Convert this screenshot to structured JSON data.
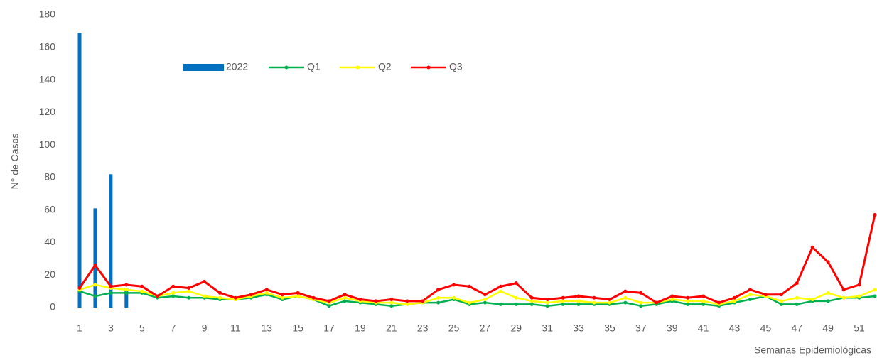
{
  "chart_data": {
    "type": "bar-line",
    "y_label": "N° de Casos",
    "x_label": "Semanas Epidemiológicas",
    "categories": [
      1,
      null,
      3,
      null,
      5,
      null,
      7,
      null,
      9,
      null,
      11,
      null,
      13,
      null,
      15,
      null,
      17,
      null,
      19,
      null,
      21,
      null,
      23,
      null,
      25,
      null,
      27,
      null,
      29,
      null,
      31,
      null,
      33,
      null,
      35,
      null,
      37,
      null,
      39,
      null,
      41,
      null,
      43,
      null,
      45,
      null,
      47,
      null,
      49,
      null,
      51,
      null
    ],
    "ylim": [
      0,
      180
    ],
    "yticks": [
      0,
      20,
      40,
      60,
      80,
      100,
      120,
      140,
      160,
      180
    ],
    "grid": false,
    "legend": "top-left",
    "series": [
      {
        "name": "2022",
        "kind": "bar",
        "color": "#0070c0",
        "values": [
          169,
          61,
          82,
          12,
          null,
          null,
          null,
          null,
          null,
          null,
          null,
          null,
          null,
          null,
          null,
          null,
          null,
          null,
          null,
          null,
          null,
          null,
          null,
          null,
          null,
          null,
          null,
          null,
          null,
          null,
          null,
          null,
          null,
          null,
          null,
          null,
          null,
          null,
          null,
          null,
          null,
          null,
          null,
          null,
          null,
          null,
          null,
          null,
          null,
          null,
          null,
          null
        ]
      },
      {
        "name": "Q1",
        "kind": "line",
        "color": "#00b050",
        "values": [
          10,
          7,
          9,
          9,
          9,
          6,
          7,
          6,
          6,
          5,
          5,
          6,
          8,
          5,
          7,
          5,
          1,
          4,
          3,
          2,
          1,
          2,
          3,
          3,
          5,
          2,
          3,
          2,
          2,
          2,
          1,
          2,
          2,
          2,
          2,
          3,
          1,
          2,
          4,
          2,
          2,
          1,
          3,
          5,
          7,
          2,
          2,
          4,
          4,
          6,
          6,
          7
        ]
      },
      {
        "name": "Q2",
        "kind": "line",
        "color": "#ffff00",
        "values": [
          11,
          14,
          12,
          11,
          10,
          7,
          9,
          10,
          7,
          6,
          5,
          7,
          9,
          6,
          7,
          5,
          3,
          6,
          4,
          3,
          3,
          2,
          3,
          6,
          6,
          3,
          5,
          10,
          6,
          4,
          3,
          4,
          4,
          3,
          3,
          6,
          3,
          3,
          5,
          4,
          4,
          2,
          4,
          8,
          7,
          4,
          6,
          5,
          9,
          6,
          7,
          11
        ]
      },
      {
        "name": "Q3",
        "kind": "line",
        "color": "#ff0000",
        "values": [
          12,
          26,
          13,
          14,
          13,
          7,
          13,
          12,
          16,
          9,
          6,
          8,
          11,
          8,
          9,
          6,
          4,
          8,
          5,
          4,
          5,
          4,
          4,
          11,
          14,
          13,
          8,
          13,
          15,
          6,
          5,
          6,
          7,
          6,
          5,
          10,
          9,
          3,
          7,
          6,
          7,
          3,
          6,
          11,
          8,
          8,
          15,
          37,
          28,
          11,
          14,
          57
        ]
      }
    ]
  }
}
